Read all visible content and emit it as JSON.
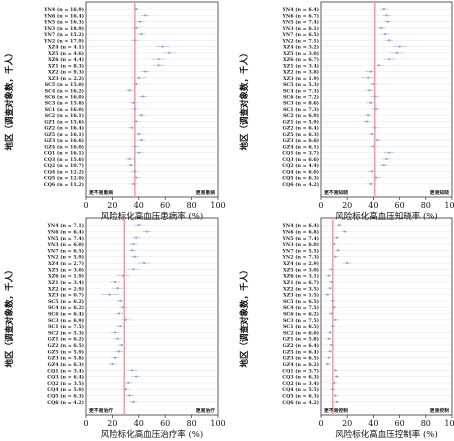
{
  "chart_data": [
    {
      "type": "scatter",
      "xlabel": "风险标化高血压患病率 (%)",
      "ylabel": "地区（调查对象数，千人）",
      "xlim": [
        0,
        100
      ],
      "xticks": [
        0,
        20,
        40,
        60,
        80,
        100
      ],
      "reference_line": 37,
      "annotations": {
        "left": "更不易患病",
        "right": "更易患病"
      },
      "grid": false,
      "categories": [
        "YN4 (n = 16.9)",
        "YN6 (n = 16.4)",
        "YN5 (n = 16.3)",
        "YN3 (n = 18.9)",
        "YN7 (n = 15.2)",
        "YN2 (n = 17.9)",
        "XZ4 (n = 4.1)",
        "XZ5 (n = 4.6)",
        "XZ6 (n = 4.4)",
        "XZ1 (n = 8.3)",
        "XZ2 (n = 9.3)",
        "XZ3 (n = 2.2)",
        "SC5 (n = 15.0)",
        "SC4 (n = 16.2)",
        "SC6 (n = 16.0)",
        "SC3 (n = 15.8)",
        "SC1 (n = 16.0)",
        "SC2 (n = 16.1)",
        "GZ1 (n = 15.6)",
        "GZ2 (n = 16.4)",
        "GZ5 (n = 16.1)",
        "GZ3 (n = 16.6)",
        "GZ4 (n = 16.0)",
        "CQ1 (n = 16.1)",
        "CQ3 (n = 15.6)",
        "CQ2 (n = 10.7)",
        "CQ4 (n = 12.2)",
        "CQ5 (n = 12.0)",
        "CQ6 (n = 11.2)"
      ],
      "values": [
        38,
        45,
        41,
        38,
        42,
        37,
        58,
        63,
        55,
        55,
        45,
        40,
        38,
        33,
        43,
        36,
        37,
        42,
        38,
        35,
        40,
        42,
        37,
        40,
        33,
        34,
        37,
        38,
        36
      ],
      "err_low": [
        36,
        42,
        38,
        35,
        39,
        34,
        53,
        58,
        50,
        51,
        42,
        34,
        35,
        30,
        40,
        33,
        34,
        39,
        35,
        32,
        37,
        39,
        34,
        37,
        30,
        31,
        34,
        35,
        33
      ],
      "err_high": [
        40,
        48,
        44,
        41,
        45,
        40,
        63,
        68,
        60,
        59,
        48,
        46,
        41,
        36,
        46,
        39,
        40,
        45,
        41,
        38,
        43,
        45,
        40,
        43,
        36,
        37,
        40,
        41,
        39
      ]
    },
    {
      "type": "scatter",
      "xlabel": "风险标化高血压知晓率 (%)",
      "ylabel": "地区（调查对象数，千人）",
      "xlim": [
        0,
        100
      ],
      "xticks": [
        0,
        20,
        40,
        60,
        80,
        100
      ],
      "reference_line": 41,
      "annotations": {
        "left": "更不易知晓",
        "right": "更易知晓"
      },
      "grid": false,
      "categories": [
        "YN4 (n = 6.4)",
        "YN6 (n = 6.7)",
        "YN5 (n = 7.4)",
        "YN3 (n = 6.1)",
        "YN7 (n = 6.5)",
        "YN2 (n = 7.1)",
        "XZ4 (n = 3.2)",
        "XZ5 (n = 3.0)",
        "XZ6 (n = 6.7)",
        "XZ1 (n = 3.4)",
        "XZ2 (n = 3.8)",
        "XZ3 (n = 1.9)",
        "SC5 (n = 5.3)",
        "SC4 (n = 7.3)",
        "SC6 (n = 7.2)",
        "SC3 (n = 8.6)",
        "SC1 (n = 7.3)",
        "SC2 (n = 6.9)",
        "GZ1 (n = 5.9)",
        "GZ2 (n = 6.4)",
        "GZ5 (n = 6.3)",
        "GZ3 (n = 6.6)",
        "GZ4 (n = 6.1)",
        "CQ1 (n = 3.7)",
        "CQ3 (n = 6.6)",
        "CQ2 (n = 4.4)",
        "CQ4 (n = 6.0)",
        "CQ5 (n = 6.3)",
        "CQ6 (n = 4.2)"
      ],
      "values": [
        48,
        50,
        51,
        46,
        49,
        52,
        60,
        58,
        52,
        44,
        38,
        36,
        40,
        37,
        41,
        38,
        42,
        36,
        35,
        41,
        39,
        43,
        40,
        52,
        50,
        48,
        39,
        42,
        38
      ],
      "err_low": [
        45,
        47,
        48,
        43,
        46,
        49,
        55,
        53,
        48,
        40,
        34,
        31,
        37,
        34,
        38,
        35,
        39,
        33,
        32,
        38,
        36,
        40,
        37,
        48,
        47,
        45,
        36,
        39,
        35
      ],
      "err_high": [
        51,
        53,
        54,
        49,
        52,
        55,
        65,
        63,
        56,
        48,
        42,
        41,
        43,
        40,
        44,
        41,
        45,
        39,
        38,
        44,
        42,
        46,
        43,
        56,
        53,
        51,
        42,
        45,
        41
      ]
    },
    {
      "type": "scatter",
      "xlabel": "风险标化高血压治疗率 (%)",
      "ylabel": "地区（调查对象数，千人）",
      "xlim": [
        0,
        100
      ],
      "xticks": [
        0,
        20,
        40,
        60,
        80,
        100
      ],
      "reference_line": 29,
      "annotations": {
        "left": "更不易治疗",
        "right": "更易治疗"
      },
      "grid": false,
      "categories": [
        "YN4 (n = 7.1)",
        "YN6 (n = 6.4)",
        "YN5 (n = 7.4)",
        "YN3 (n = 6.0)",
        "YN7 (n = 6.5)",
        "YN2 (n = 5.9)",
        "XZ4 (n = 2.7)",
        "XZ5 (n = 3.0)",
        "XZ6 (n = 1.9)",
        "XZ1 (n = 3.4)",
        "XZ2 (n = 2.9)",
        "XZ3 (n = 0.7)",
        "SC5 (n = 6.2)",
        "SC4 (n = 6.2)",
        "SC6 (n = 6.4)",
        "SC3 (n = 6.9)",
        "SC1 (n = 7.5)",
        "SC2 (n = 5.3)",
        "GZ1 (n = 6.2)",
        "GZ2 (n = 6.5)",
        "GZ5 (n = 5.9)",
        "GZ3 (n = 5.8)",
        "GZ4 (n = 6.3)",
        "CQ1 (n = 3.4)",
        "CQ3 (n = 6.4)",
        "CQ2 (n = 3.5)",
        "CQ4 (n = 5.0)",
        "CQ5 (n = 6.3)",
        "CQ6 (n = 4.2)"
      ],
      "values": [
        40,
        46,
        38,
        36,
        35,
        37,
        44,
        36,
        28,
        22,
        24,
        18,
        26,
        28,
        25,
        30,
        26,
        22,
        24,
        27,
        25,
        22,
        20,
        35,
        38,
        32,
        30,
        33,
        36
      ],
      "err_low": [
        37,
        43,
        35,
        33,
        32,
        34,
        39,
        31,
        23,
        18,
        20,
        12,
        23,
        25,
        22,
        27,
        23,
        19,
        21,
        24,
        22,
        19,
        17,
        31,
        35,
        29,
        27,
        30,
        33
      ],
      "err_high": [
        43,
        49,
        41,
        39,
        38,
        40,
        49,
        41,
        33,
        26,
        28,
        24,
        29,
        31,
        28,
        33,
        29,
        25,
        27,
        30,
        28,
        25,
        23,
        39,
        41,
        35,
        33,
        36,
        39
      ]
    },
    {
      "type": "scatter",
      "xlabel": "风险标化高血压控制率 (%)",
      "ylabel": "地区（调查对象数，千人）",
      "xlim": [
        0,
        100
      ],
      "xticks": [
        0,
        20,
        40,
        60,
        80,
        100
      ],
      "reference_line": 9,
      "annotations": {
        "left": "更不易控制",
        "right": "更易控制"
      },
      "grid": false,
      "categories": [
        "YN4 (n = 6.4)",
        "YN6 (n = 6.8)",
        "YN5 (n = 7.4)",
        "YN3 (n = 6.0)",
        "YN7 (n = 5.5)",
        "YN2 (n = 7.3)",
        "XZ4 (n = 2.9)",
        "XZ5 (n = 3.0)",
        "XZ6 (n = 3.1)",
        "XZ1 (n = 6.7)",
        "XZ2 (n = 3.5)",
        "XZ3 (n = 1.5)",
        "SC5 (n = 6.5)",
        "SC4 (n = 7.5)",
        "SC6 (n = 6.2)",
        "SC3 (n = 7.5)",
        "SC1 (n = 6.5)",
        "SC2 (n = 6.0)",
        "GZ1 (n = 5.8)",
        "GZ2 (n = 6.4)",
        "GZ5 (n = 6.4)",
        "GZ3 (n = 6.5)",
        "GZ4 (n = 6.2)",
        "CQ1 (n = 3.7)",
        "CQ3 (n = 6.3)",
        "CQ2 (n = 3.4)",
        "CQ4 (n = 5.5)",
        "CQ5 (n = 6.3)",
        "CQ6 (n = 4.2)"
      ],
      "values": [
        14,
        18,
        12,
        10,
        13,
        11,
        20,
        8,
        6,
        8,
        7,
        5,
        9,
        10,
        8,
        11,
        9,
        7,
        6,
        8,
        7,
        6,
        5,
        11,
        12,
        10,
        9,
        11,
        12
      ],
      "err_low": [
        12,
        16,
        10,
        8,
        11,
        9,
        17,
        6,
        4,
        6,
        5,
        2,
        7,
        8,
        6,
        9,
        7,
        5,
        4,
        6,
        5,
        4,
        3,
        9,
        10,
        8,
        7,
        9,
        10
      ],
      "err_high": [
        16,
        20,
        14,
        12,
        15,
        13,
        23,
        10,
        8,
        10,
        9,
        8,
        11,
        12,
        10,
        13,
        11,
        9,
        8,
        10,
        9,
        8,
        7,
        13,
        14,
        12,
        11,
        13,
        14
      ]
    }
  ]
}
